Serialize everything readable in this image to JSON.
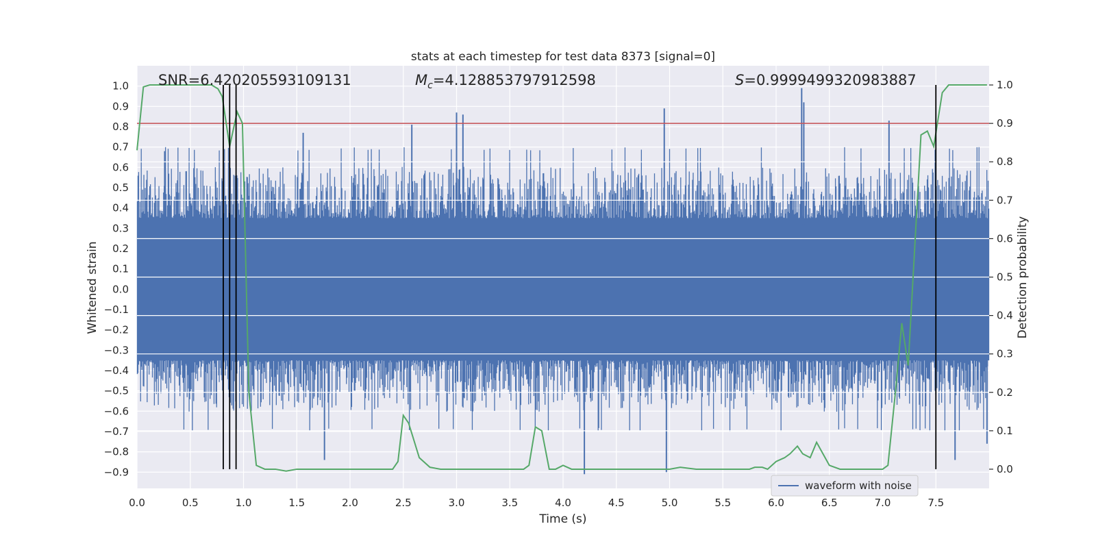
{
  "chart_data": {
    "type": "line",
    "title": "stats at each timestep for test data 8373 [signal=0]",
    "xlabel": "Time (s)",
    "ylabel": "Whitened strain",
    "y2label": "Detection probability",
    "xlim": [
      0.0,
      8.0
    ],
    "ylim": [
      -0.98,
      1.1
    ],
    "y2lim": [
      -0.05,
      1.05
    ],
    "xticks": [
      0.0,
      0.5,
      1.0,
      1.5,
      2.0,
      2.5,
      3.0,
      3.5,
      4.0,
      4.5,
      5.0,
      5.5,
      6.0,
      6.5,
      7.0,
      7.5
    ],
    "xtick_labels": [
      "0.0",
      "0.5",
      "1.0",
      "1.5",
      "2.0",
      "2.5",
      "3.0",
      "3.5",
      "4.0",
      "4.5",
      "5.0",
      "5.5",
      "6.0",
      "6.5",
      "7.0",
      "7.5"
    ],
    "yticks": [
      -0.9,
      -0.8,
      -0.7,
      -0.6,
      -0.5,
      -0.4,
      -0.3,
      -0.2,
      -0.1,
      0.0,
      0.1,
      0.2,
      0.3,
      0.4,
      0.5,
      0.6,
      0.7,
      0.8,
      0.9,
      1.0
    ],
    "ytick_labels": [
      "−0.9",
      "−0.8",
      "−0.7",
      "−0.6",
      "−0.5",
      "−0.4",
      "−0.3",
      "−0.2",
      "−0.1",
      "0.0",
      "0.1",
      "0.2",
      "0.3",
      "0.4",
      "0.5",
      "0.6",
      "0.7",
      "0.8",
      "0.9",
      "1.0"
    ],
    "y2ticks": [
      0.0,
      0.1,
      0.2,
      0.3,
      0.4,
      0.5,
      0.6,
      0.7,
      0.8,
      0.9,
      1.0
    ],
    "y2tick_labels": [
      "0.0",
      "0.1",
      "0.2",
      "0.3",
      "0.4",
      "0.5",
      "0.6",
      "0.7",
      "0.8",
      "0.9",
      "1.0"
    ],
    "grid": true,
    "legend": {
      "position": "lower-right",
      "entries": [
        "waveform with noise"
      ]
    },
    "annotations": {
      "snr": "SNR=6.420205593109131",
      "mc_symbol": "M",
      "mc_sub": "c",
      "mc_value": "=4.128853797912598",
      "s_symbol": "S",
      "s_value": "=0.9999499320983887"
    },
    "threshold": {
      "axis": "y2",
      "value": 0.9
    },
    "vertical_markers": [
      0.81,
      0.87,
      0.93,
      7.5
    ],
    "spikes": [
      {
        "x": 0.26,
        "y": 0.68
      },
      {
        "x": 1.56,
        "y": 0.77
      },
      {
        "x": 2.58,
        "y": 0.81
      },
      {
        "x": 3.0,
        "y": 0.87
      },
      {
        "x": 3.06,
        "y": 0.86
      },
      {
        "x": 4.95,
        "y": 0.89
      },
      {
        "x": 6.24,
        "y": 0.99
      },
      {
        "x": 6.26,
        "y": 0.92
      },
      {
        "x": 7.06,
        "y": 0.83
      },
      {
        "x": 1.76,
        "y": -0.84
      },
      {
        "x": 4.2,
        "y": -0.91
      },
      {
        "x": 4.97,
        "y": -0.9
      },
      {
        "x": 7.68,
        "y": -0.84
      },
      {
        "x": 7.98,
        "y": -0.76
      }
    ],
    "series": [
      {
        "name": "waveform with noise",
        "color": "#4c72b0",
        "axis": "y",
        "style": "dense-noise",
        "band_abs": 0.32,
        "typical_peak": [
          0.35,
          0.62
        ],
        "seed": 8373
      },
      {
        "name": "detection probability",
        "color": "#55a868",
        "axis": "y2",
        "x": [
          0.0,
          0.06,
          0.12,
          0.2,
          0.3,
          0.5,
          0.7,
          0.76,
          0.8,
          0.87,
          0.94,
          0.99,
          1.05,
          1.12,
          1.2,
          1.25,
          1.3,
          1.4,
          1.5,
          1.6,
          1.7,
          1.8,
          1.9,
          1.95,
          2.0,
          2.1,
          2.2,
          2.3,
          2.4,
          2.45,
          2.5,
          2.55,
          2.65,
          2.75,
          2.85,
          2.95,
          3.1,
          3.25,
          3.4,
          3.55,
          3.63,
          3.68,
          3.74,
          3.8,
          3.87,
          3.93,
          4.0,
          4.08,
          4.15,
          4.3,
          4.6,
          4.8,
          5.0,
          5.1,
          5.25,
          5.5,
          5.75,
          5.8,
          5.87,
          5.92,
          6.0,
          6.08,
          6.13,
          6.2,
          6.25,
          6.32,
          6.38,
          6.44,
          6.5,
          6.6,
          6.8,
          7.0,
          7.05,
          7.12,
          7.18,
          7.24,
          7.3,
          7.36,
          7.42,
          7.48,
          7.56,
          7.62,
          7.7,
          7.85,
          7.98
        ],
        "y": [
          0.83,
          0.995,
          1.0,
          1.0,
          1.0,
          1.0,
          1.0,
          0.99,
          0.97,
          0.84,
          0.93,
          0.9,
          0.2,
          0.01,
          0.0,
          0.0,
          0.0,
          -0.005,
          0.0,
          0.0,
          0.0,
          0.0,
          0.0,
          0.0,
          0.0,
          0.0,
          0.0,
          0.0,
          0.0,
          0.02,
          0.14,
          0.12,
          0.03,
          0.005,
          0.0,
          0.0,
          0.0,
          0.0,
          0.0,
          0.0,
          0.0,
          0.01,
          0.11,
          0.1,
          0.0,
          0.0,
          0.01,
          0.0,
          0.0,
          0.0,
          0.0,
          0.0,
          0.0,
          0.005,
          0.0,
          0.0,
          0.0,
          0.005,
          0.005,
          0.0,
          0.02,
          0.03,
          0.04,
          0.06,
          0.04,
          0.03,
          0.07,
          0.04,
          0.01,
          0.0,
          0.0,
          0.0,
          0.01,
          0.2,
          0.38,
          0.27,
          0.57,
          0.87,
          0.88,
          0.84,
          0.98,
          1.0,
          1.0,
          1.0,
          1.0
        ]
      }
    ],
    "colors": {
      "background": "#eaeaf2",
      "grid": "#ffffff",
      "threshold": "#c44e52",
      "marker": "#000000",
      "text": "#262626"
    }
  }
}
